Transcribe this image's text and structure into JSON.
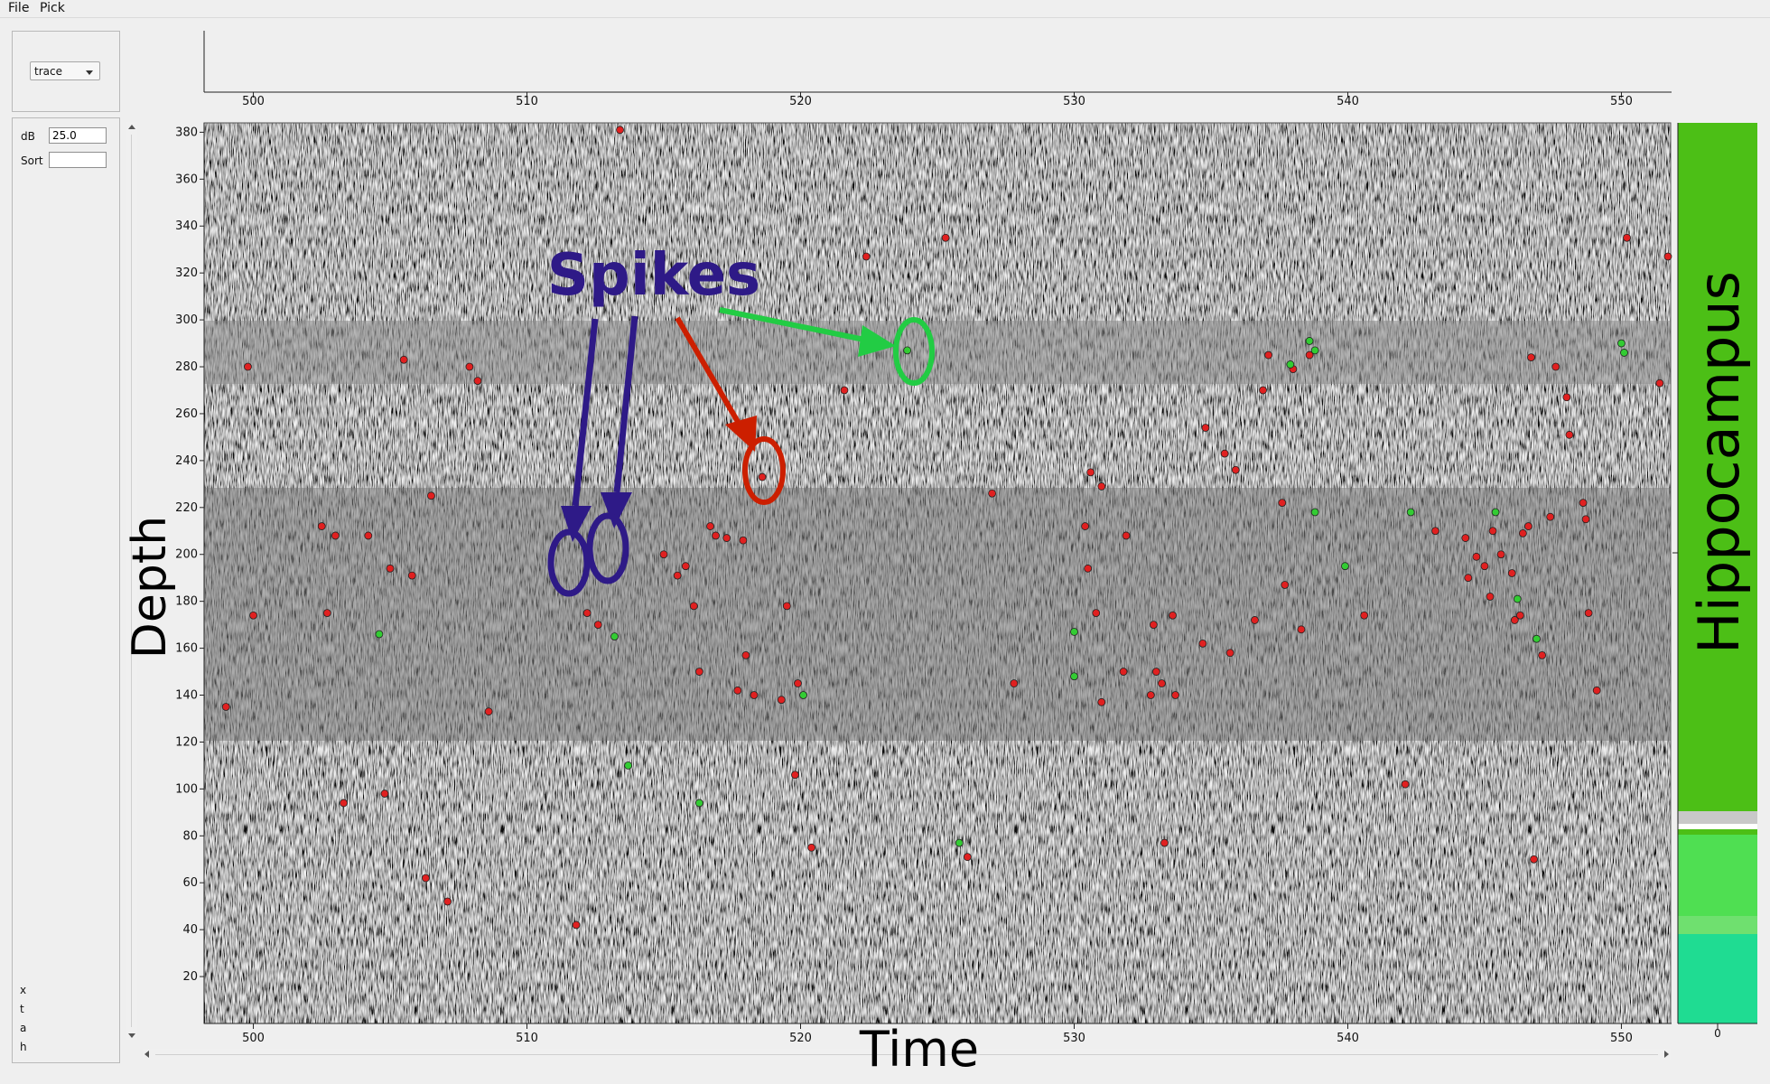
{
  "menu": {
    "file_label": "File",
    "pick_label": "Pick"
  },
  "controls": {
    "display_mode": "trace",
    "db_label": "dB",
    "db_value": "25.0",
    "sort_label": "Sort",
    "sort_value": ""
  },
  "status": {
    "x_label": "x",
    "t_label": "t",
    "a_label": "a",
    "h_label": "h"
  },
  "axes": {
    "xlabel": "Time",
    "ylabel": "Depth",
    "x_ticks": [
      "500",
      "510",
      "520",
      "530",
      "540",
      "550"
    ],
    "y_ticks": [
      "20",
      "40",
      "60",
      "80",
      "100",
      "120",
      "140",
      "160",
      "180",
      "200",
      "220",
      "240",
      "260",
      "280",
      "300",
      "320",
      "340",
      "360",
      "380"
    ],
    "brain_axis_tick": "0"
  },
  "annotation": {
    "text": "Spikes",
    "color": "#2e1a87"
  },
  "brain_region": {
    "label": "Hippocampus",
    "color": "#4cbf16"
  },
  "chart_data": {
    "type": "scatter",
    "x_range": [
      498.2,
      551.8
    ],
    "y_range": [
      0,
      384
    ],
    "background": "raw ephys traces (grayscale image)",
    "series": [
      {
        "color": "#e02020",
        "points": [
          [
            499.0,
            135
          ],
          [
            499.8,
            280
          ],
          [
            500.0,
            174
          ],
          [
            502.5,
            212
          ],
          [
            502.7,
            175
          ],
          [
            503.0,
            208
          ],
          [
            503.3,
            94
          ],
          [
            504.2,
            208
          ],
          [
            504.8,
            98
          ],
          [
            505.0,
            194
          ],
          [
            505.5,
            283
          ],
          [
            505.8,
            191
          ],
          [
            506.3,
            62
          ],
          [
            506.5,
            225
          ],
          [
            507.1,
            52
          ],
          [
            507.9,
            280
          ],
          [
            508.2,
            274
          ],
          [
            508.6,
            133
          ],
          [
            511.8,
            42
          ],
          [
            512.2,
            175
          ],
          [
            512.6,
            170
          ],
          [
            513.4,
            381
          ],
          [
            515.0,
            200
          ],
          [
            515.5,
            191
          ],
          [
            515.8,
            195
          ],
          [
            516.1,
            178
          ],
          [
            516.3,
            150
          ],
          [
            516.7,
            212
          ],
          [
            516.9,
            208
          ],
          [
            517.3,
            207
          ],
          [
            517.7,
            142
          ],
          [
            517.9,
            206
          ],
          [
            518.0,
            157
          ],
          [
            518.3,
            140
          ],
          [
            518.6,
            233
          ],
          [
            519.3,
            138
          ],
          [
            519.5,
            178
          ],
          [
            519.8,
            106
          ],
          [
            519.9,
            145
          ],
          [
            520.4,
            75
          ],
          [
            521.6,
            270
          ],
          [
            522.4,
            327
          ],
          [
            525.3,
            335
          ],
          [
            526.1,
            71
          ],
          [
            527.0,
            226
          ],
          [
            527.8,
            145
          ],
          [
            530.4,
            212
          ],
          [
            530.5,
            194
          ],
          [
            530.6,
            235
          ],
          [
            530.8,
            175
          ],
          [
            531.0,
            137
          ],
          [
            531.0,
            229
          ],
          [
            531.8,
            150
          ],
          [
            531.9,
            208
          ],
          [
            532.8,
            140
          ],
          [
            532.9,
            170
          ],
          [
            533.0,
            150
          ],
          [
            533.2,
            145
          ],
          [
            533.3,
            77
          ],
          [
            533.6,
            174
          ],
          [
            533.7,
            140
          ],
          [
            534.7,
            162
          ],
          [
            534.8,
            254
          ],
          [
            535.5,
            243
          ],
          [
            535.7,
            158
          ],
          [
            535.9,
            236
          ],
          [
            536.6,
            172
          ],
          [
            536.9,
            270
          ],
          [
            537.1,
            285
          ],
          [
            537.6,
            222
          ],
          [
            537.7,
            187
          ],
          [
            538.0,
            279
          ],
          [
            538.3,
            168
          ],
          [
            538.6,
            285
          ],
          [
            540.6,
            174
          ],
          [
            542.1,
            102
          ],
          [
            543.2,
            210
          ],
          [
            544.3,
            207
          ],
          [
            544.4,
            190
          ],
          [
            544.7,
            199
          ],
          [
            545.0,
            195
          ],
          [
            545.2,
            182
          ],
          [
            545.3,
            210
          ],
          [
            545.6,
            200
          ],
          [
            546.0,
            192
          ],
          [
            546.1,
            172
          ],
          [
            546.3,
            174
          ],
          [
            546.4,
            209
          ],
          [
            546.6,
            212
          ],
          [
            546.7,
            284
          ],
          [
            546.8,
            70
          ],
          [
            547.1,
            157
          ],
          [
            547.4,
            216
          ],
          [
            547.6,
            280
          ],
          [
            548.0,
            267
          ],
          [
            548.1,
            251
          ],
          [
            548.6,
            222
          ],
          [
            548.7,
            215
          ],
          [
            548.8,
            175
          ],
          [
            549.1,
            142
          ],
          [
            550.2,
            335
          ],
          [
            551.4,
            273
          ],
          [
            551.7,
            327
          ]
        ]
      },
      {
        "color": "#33cc33",
        "points": [
          [
            504.6,
            166
          ],
          [
            513.2,
            165
          ],
          [
            513.7,
            110
          ],
          [
            516.3,
            94
          ],
          [
            520.1,
            140
          ],
          [
            523.9,
            287
          ],
          [
            525.8,
            77
          ],
          [
            530.0,
            167
          ],
          [
            530.0,
            148
          ],
          [
            537.9,
            281
          ],
          [
            538.6,
            291
          ],
          [
            538.8,
            287
          ],
          [
            538.8,
            218
          ],
          [
            539.9,
            195
          ],
          [
            542.3,
            218
          ],
          [
            545.4,
            218
          ],
          [
            546.2,
            181
          ],
          [
            546.9,
            164
          ],
          [
            550.0,
            290
          ],
          [
            550.1,
            286
          ]
        ]
      }
    ]
  }
}
